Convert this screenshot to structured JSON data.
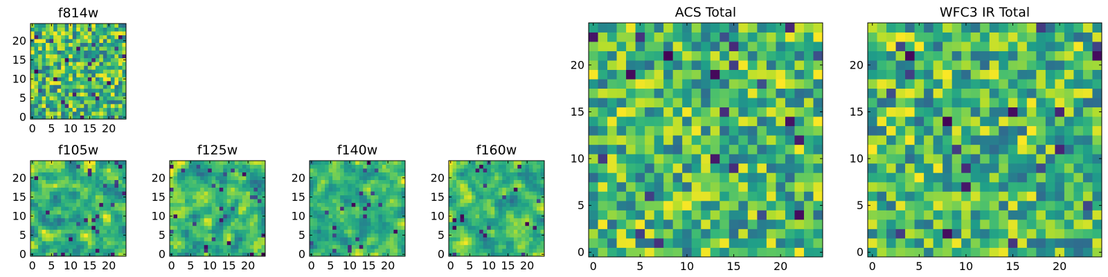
{
  "chart_data": [
    {
      "type": "heatmap",
      "title": "f814w",
      "grid_size": [
        25,
        25
      ],
      "xlim": [
        0,
        24
      ],
      "ylim": [
        0,
        24
      ],
      "xticks": [
        0,
        5,
        10,
        15,
        20
      ],
      "yticks": [
        0,
        5,
        10,
        15,
        20
      ],
      "colormap": "viridis",
      "values": "pseudo-random per-pixel noise (25x25)"
    },
    {
      "type": "heatmap",
      "title": "f105w",
      "grid_size": [
        25,
        25
      ],
      "xlim": [
        0,
        24
      ],
      "ylim": [
        0,
        24
      ],
      "xticks": [
        0,
        5,
        10,
        15,
        20
      ],
      "yticks": [
        0,
        5,
        10,
        15,
        20
      ],
      "colormap": "viridis",
      "values": "pseudo-random smooth noise (25x25)"
    },
    {
      "type": "heatmap",
      "title": "f125w",
      "grid_size": [
        25,
        25
      ],
      "xlim": [
        0,
        24
      ],
      "ylim": [
        0,
        24
      ],
      "xticks": [
        0,
        5,
        10,
        15,
        20
      ],
      "yticks": [
        0,
        5,
        10,
        15,
        20
      ],
      "colormap": "viridis",
      "values": "pseudo-random smooth noise (25x25)"
    },
    {
      "type": "heatmap",
      "title": "f140w",
      "grid_size": [
        25,
        25
      ],
      "xlim": [
        0,
        24
      ],
      "ylim": [
        0,
        24
      ],
      "xticks": [
        0,
        5,
        10,
        15,
        20
      ],
      "yticks": [
        0,
        5,
        10,
        15,
        20
      ],
      "colormap": "viridis",
      "values": "pseudo-random smooth noise (25x25)"
    },
    {
      "type": "heatmap",
      "title": "f160w",
      "grid_size": [
        25,
        25
      ],
      "xlim": [
        0,
        24
      ],
      "ylim": [
        0,
        24
      ],
      "xticks": [
        0,
        5,
        10,
        15,
        20
      ],
      "yticks": [
        0,
        5,
        10,
        15,
        20
      ],
      "colormap": "viridis",
      "values": "pseudo-random smooth noise (25x25)"
    },
    {
      "type": "heatmap",
      "title": "ACS Total",
      "grid_size": [
        25,
        25
      ],
      "xlim": [
        0,
        24
      ],
      "ylim": [
        0,
        24
      ],
      "xticks": [
        0,
        5,
        10,
        15,
        20
      ],
      "yticks": [
        0,
        5,
        10,
        15,
        20
      ],
      "colormap": "viridis",
      "values": "pseudo-random per-pixel noise (25x25)"
    },
    {
      "type": "heatmap",
      "title": "WFC3 IR Total",
      "grid_size": [
        25,
        25
      ],
      "xlim": [
        0,
        24
      ],
      "ylim": [
        0,
        24
      ],
      "xticks": [
        0,
        5,
        10,
        15,
        20
      ],
      "yticks": [
        0,
        5,
        10,
        15,
        20
      ],
      "colormap": "viridis",
      "values": "pseudo-random per-pixel noise (25x25)"
    }
  ]
}
